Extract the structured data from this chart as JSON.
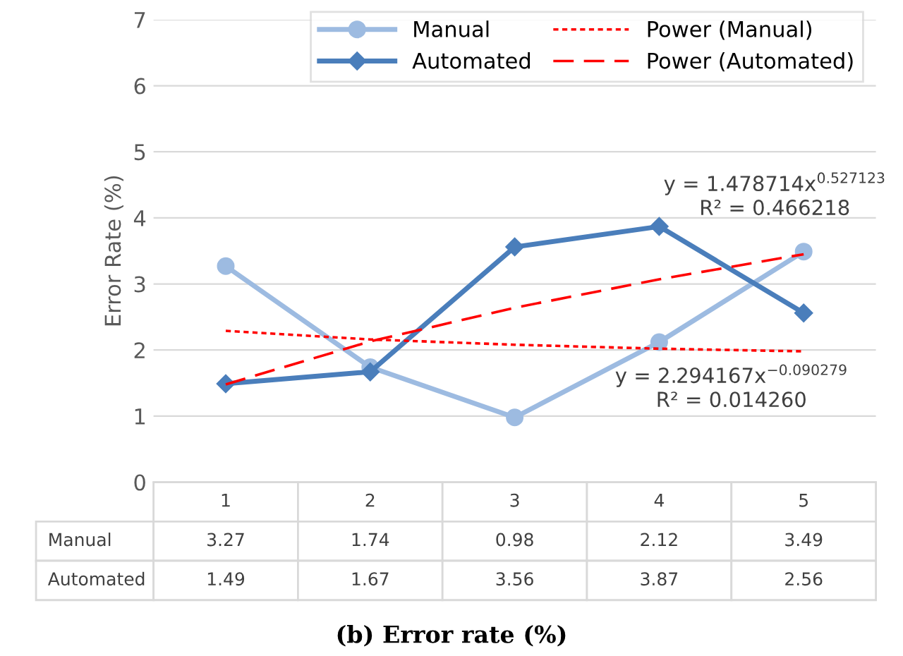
{
  "chart_data": {
    "type": "line",
    "title": "(b) Error rate (%)",
    "ylabel": "Error Rate (%)",
    "categories": [
      "1",
      "2",
      "3",
      "4",
      "5"
    ],
    "series": [
      {
        "name": "Manual",
        "color": "#9dbbe1",
        "values": [
          3.27,
          1.74,
          0.98,
          2.12,
          3.49
        ],
        "marker": "circle",
        "line_style": "solid",
        "value_labels": [
          "3.27",
          "1.74",
          "0.98",
          "2.12",
          "3.49"
        ]
      },
      {
        "name": "Automated",
        "color": "#4a7ebb",
        "values": [
          1.49,
          1.67,
          3.56,
          3.87,
          2.56
        ],
        "marker": "diamond",
        "line_style": "solid",
        "value_labels": [
          "1.49",
          "1.67",
          "3.56",
          "3.87",
          "2.56"
        ]
      },
      {
        "name": "Power (Manual)",
        "color": "#ff0000",
        "values": [
          2.29,
          2.16,
          2.08,
          2.02,
          1.98
        ],
        "marker": "none",
        "line_style": "dotted"
      },
      {
        "name": "Power (Automated)",
        "color": "#ff0000",
        "values": [
          1.48,
          2.13,
          2.64,
          3.07,
          3.45
        ],
        "marker": "none",
        "line_style": "dashed"
      }
    ],
    "ylim": [
      0,
      7
    ],
    "yticks": [
      0,
      1,
      2,
      3,
      4,
      5,
      6,
      7
    ],
    "grid": "y",
    "legend": "top",
    "annotations": [
      "y = 1.478714x$^{0.527123}$",
      "R² = 0.466218",
      "y = 2.294167x$^{−0.090279}$",
      "R² = 0.014260"
    ]
  }
}
